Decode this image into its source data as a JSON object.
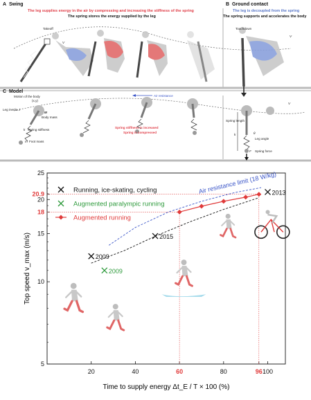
{
  "schematic": {
    "panel_a": {
      "letter": "A",
      "title": "Swing",
      "caption_red": "The leg supplies energy in the air by compressing and increasing the stiffness of the spring",
      "caption_black": "The spring stores the energy supplied by the leg",
      "takeoff": "Takeoff",
      "v": "V"
    },
    "panel_b": {
      "letter": "B",
      "title": "Ground contact",
      "caption_blue": "The leg is decoupled from the spring",
      "caption_black": "The spring supports and accelerates the body",
      "touchdown": "Touchdown",
      "v": "V"
    },
    "panel_c": {
      "letter": "C",
      "title": "Model",
      "motion": "Motion of the body",
      "xy": "(x,y)",
      "leg_inertia": "Leg inertia",
      "J": "J",
      "M": "M",
      "body_mass": "Body mass",
      "k_label": "k",
      "spring_stiffness": "Spring stiffness",
      "m": "m",
      "foot_mass": "Foot mass",
      "air_resistance": "Air resistance",
      "stiffness_increased": "Spring stiffness is increased",
      "compressed": "Spring is compressed",
      "spring_length": "Spring length",
      "leg_angle": "Leg angle",
      "theta": "θ",
      "F": "F",
      "spring_force": "Spring force",
      "k2": "k",
      "l": "l",
      "v": "V"
    }
  },
  "chart_data": {
    "type": "scatter",
    "xlabel": "Time to supply energy  Δt_E / T × 100 (%)",
    "ylabel": "Top speed  v_max  (m/s)",
    "xlim": [
      0,
      108
    ],
    "ylim": [
      5,
      25
    ],
    "y_scale": "log",
    "x_ticks": [
      "20",
      "40",
      "60",
      "80",
      "96",
      "100"
    ],
    "x_tick_values": [
      20,
      40,
      60,
      80,
      96,
      100
    ],
    "x_highlight_ticks": [
      "60",
      "96"
    ],
    "y_ticks": [
      "5",
      "10",
      "15",
      "18",
      "20",
      "20.9",
      "25"
    ],
    "y_tick_values": [
      5,
      10,
      15,
      18,
      20,
      20.9,
      25
    ],
    "y_highlight_ticks": [
      "18",
      "20.9"
    ],
    "grid": false,
    "legend_position": "top-left",
    "legend": [
      {
        "label": "Running, ice-skating, cycling",
        "color": "#111111",
        "marker": "x"
      },
      {
        "label": "Augmented paralympic running",
        "color": "#2e9a3c",
        "marker": "x"
      },
      {
        "label": "Augmented running",
        "color": "#e03a3a",
        "marker": "diamond-line"
      }
    ],
    "series": [
      {
        "name": "Running, ice-skating, cycling",
        "color": "#111111",
        "marker": "x",
        "x": [
          20,
          49,
          100
        ],
        "y": [
          12.4,
          14.7,
          21.3
        ],
        "labels": [
          "2009",
          "2015",
          "2013"
        ]
      },
      {
        "name": "Augmented paralympic running",
        "color": "#2e9a3c",
        "marker": "x",
        "x": [
          26
        ],
        "y": [
          11.0
        ],
        "labels": [
          "2009"
        ]
      },
      {
        "name": "Augmented running",
        "color": "#e03a3a",
        "marker": "diamond",
        "x": [
          60,
          70,
          80,
          90,
          96
        ],
        "y": [
          18.0,
          18.9,
          19.7,
          20.4,
          20.9
        ],
        "labels": []
      }
    ],
    "curves": [
      {
        "name": "Air resistance limit (18 W/kg)",
        "color": "#3a55c8",
        "style": "dashed",
        "x": [
          28,
          40,
          55,
          70,
          85,
          97
        ],
        "y": [
          13.6,
          15.8,
          18.0,
          19.7,
          21.2,
          22.1
        ]
      },
      {
        "color": "#111111",
        "style": "dashed",
        "x": [
          20,
          35,
          50,
          65,
          80,
          96
        ],
        "y": [
          11.7,
          13.0,
          14.8,
          16.6,
          18.4,
          20.3
        ]
      }
    ],
    "annotations": [
      {
        "text": "Air resistance limit (18 W/kg)",
        "color": "#3a55c8"
      }
    ],
    "colors": {
      "red": "#e03a3a",
      "green": "#2e9a3c",
      "blue": "#3a55c8"
    }
  }
}
